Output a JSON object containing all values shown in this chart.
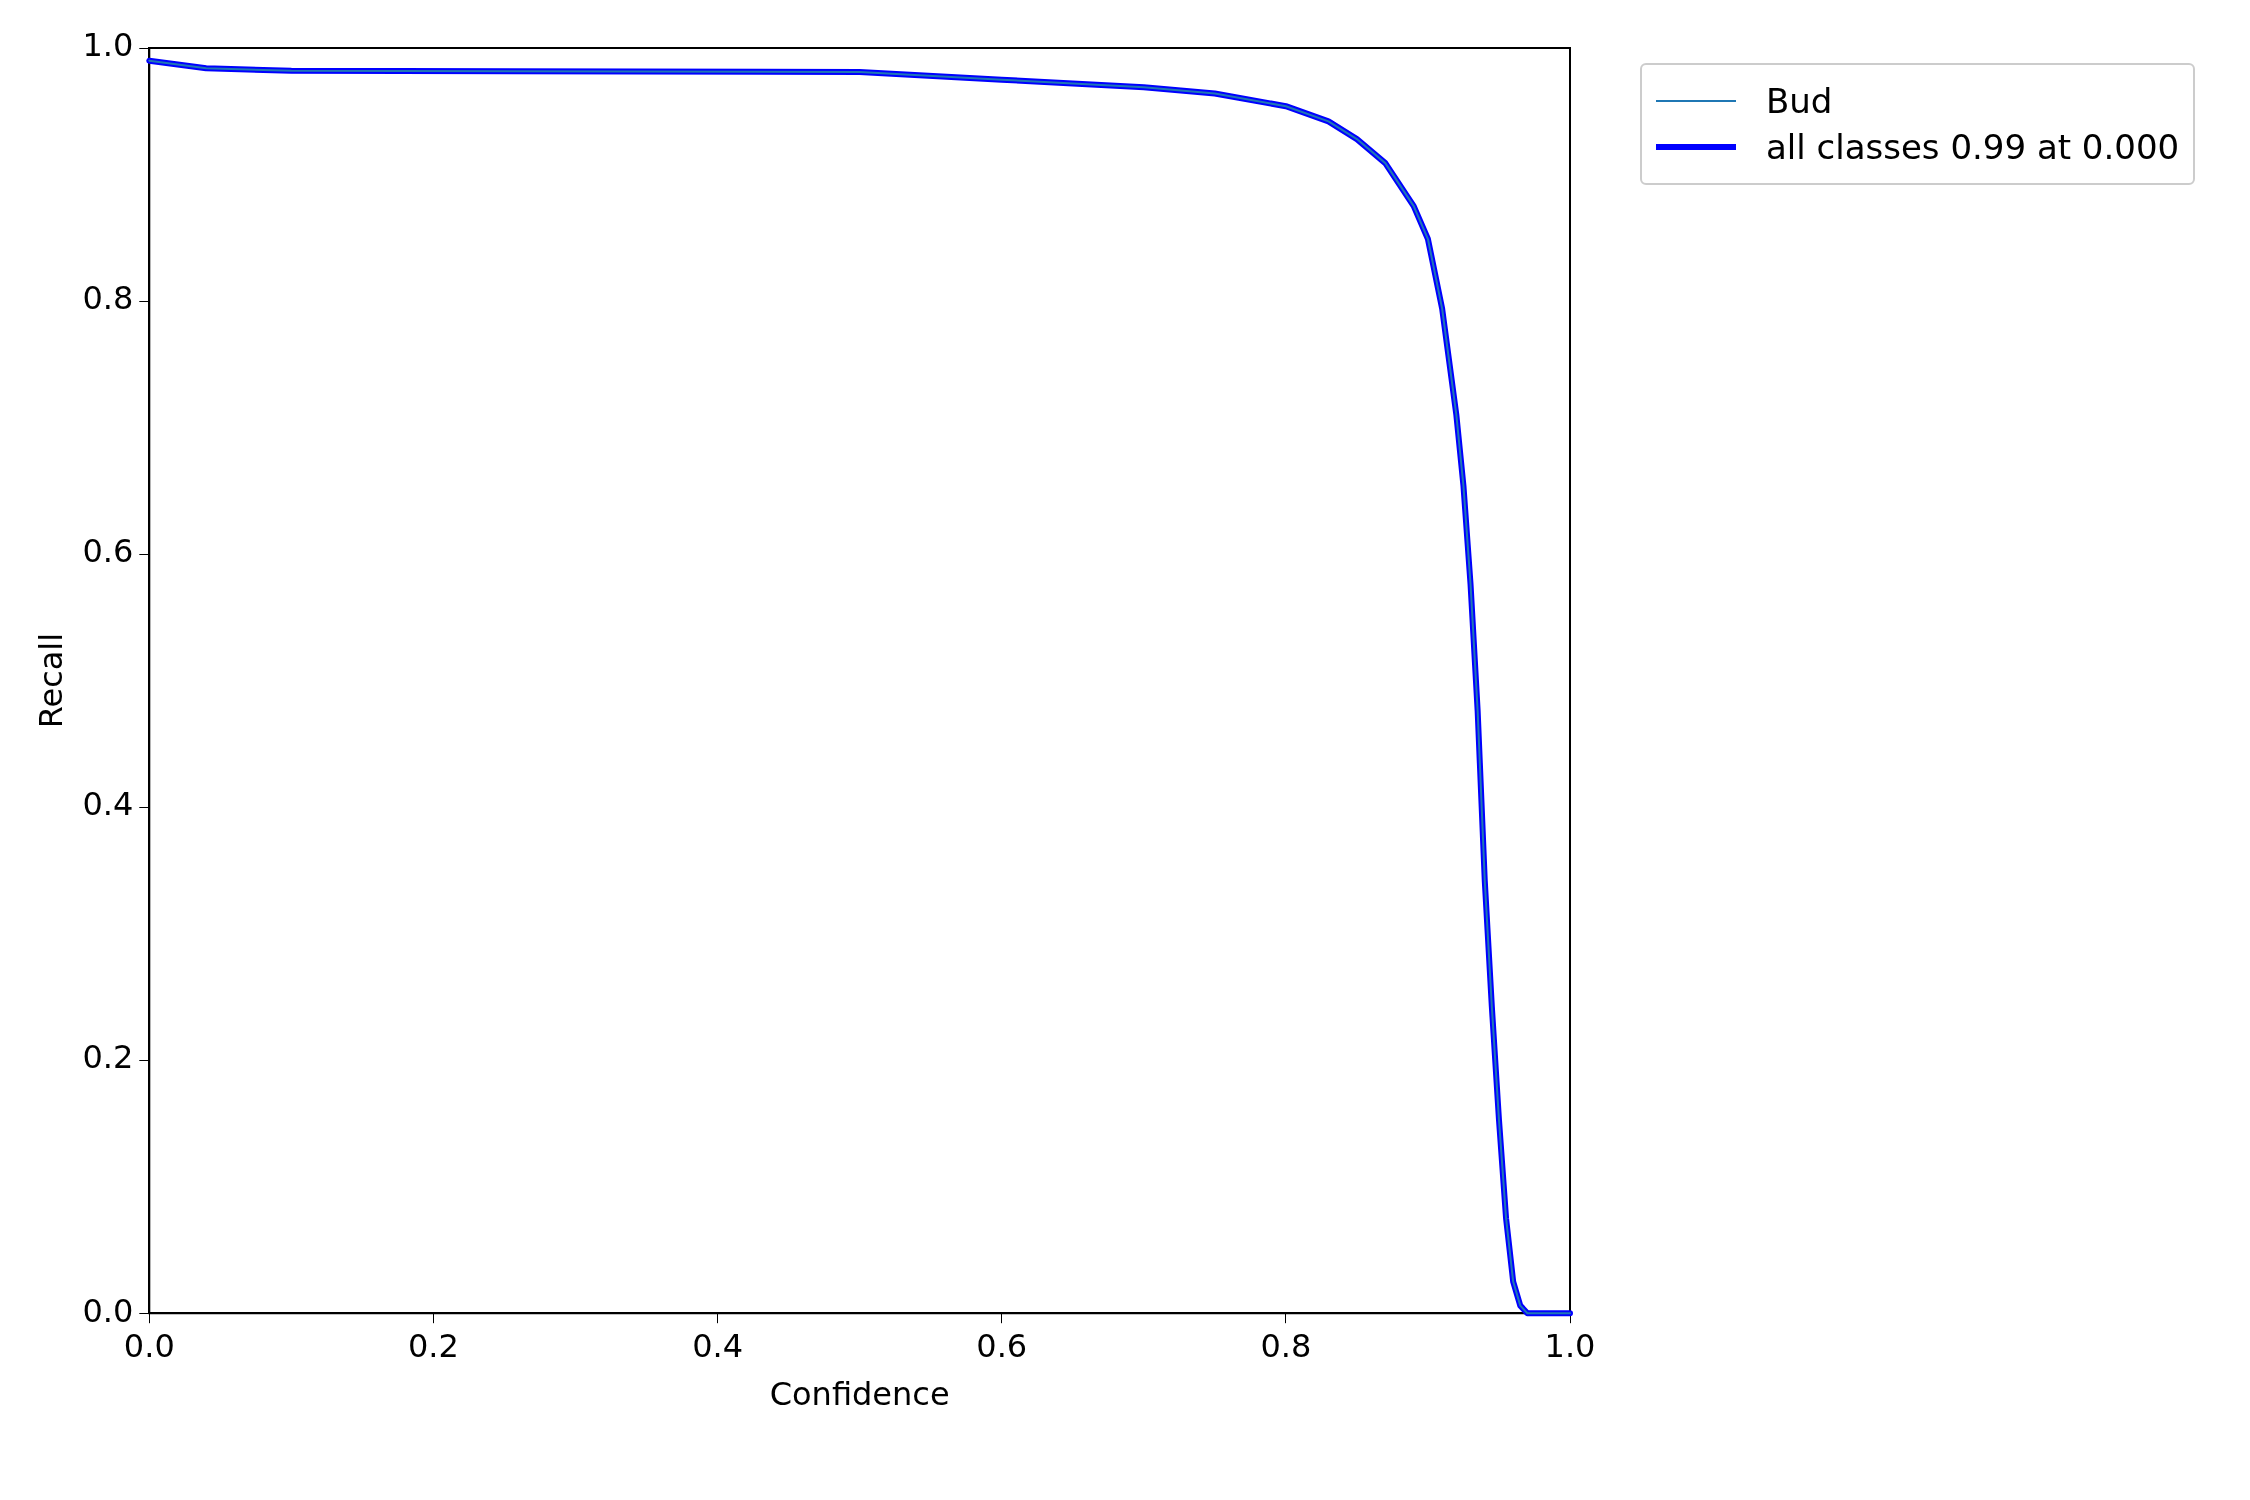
{
  "chart_data": {
    "type": "line",
    "xlabel": "Confidence",
    "ylabel": "Recall",
    "xlim": [
      0,
      1
    ],
    "ylim": [
      0,
      1
    ],
    "xticks": [
      {
        "value": 0,
        "label": "0.0"
      },
      {
        "value": 0.2,
        "label": "0.2"
      },
      {
        "value": 0.4,
        "label": "0.4"
      },
      {
        "value": 0.6,
        "label": "0.6"
      },
      {
        "value": 0.8,
        "label": "0.8"
      },
      {
        "value": 1,
        "label": "1.0"
      }
    ],
    "yticks": [
      {
        "value": 0,
        "label": "0.0"
      },
      {
        "value": 0.2,
        "label": "0.2"
      },
      {
        "value": 0.4,
        "label": "0.4"
      },
      {
        "value": 0.6,
        "label": "0.6"
      },
      {
        "value": 0.8,
        "label": "0.8"
      },
      {
        "value": 1,
        "label": "1.0"
      }
    ],
    "x": [
      0,
      0.02,
      0.04,
      0.1,
      0.5,
      0.6,
      0.65,
      0.7,
      0.75,
      0.8,
      0.83,
      0.85,
      0.87,
      0.88,
      0.89,
      0.9,
      0.91,
      0.92,
      0.925,
      0.93,
      0.935,
      0.94,
      0.945,
      0.95,
      0.955,
      0.96,
      0.965,
      0.97,
      1
    ],
    "series": [
      {
        "name": "Bud",
        "color": "#1f77b4",
        "values": [
          0.99,
          0.987,
          0.984,
          0.982,
          0.981,
          0.975,
          0.972,
          0.969,
          0.964,
          0.954,
          0.942,
          0.928,
          0.909,
          0.892,
          0.875,
          0.849,
          0.794,
          0.71,
          0.654,
          0.576,
          0.476,
          0.342,
          0.242,
          0.153,
          0.075,
          0.025,
          0.006,
          0,
          0
        ]
      },
      {
        "name": "all classes 0.99 at 0.000",
        "color": "#0000ff",
        "values": [
          0.99,
          0.987,
          0.984,
          0.982,
          0.981,
          0.975,
          0.972,
          0.969,
          0.964,
          0.954,
          0.942,
          0.928,
          0.909,
          0.892,
          0.875,
          0.849,
          0.794,
          0.71,
          0.654,
          0.576,
          0.476,
          0.342,
          0.242,
          0.153,
          0.075,
          0.025,
          0.006,
          0,
          0
        ]
      }
    ],
    "grid": false,
    "legend": "top right",
    "marker": "none",
    "line_style": "solid"
  }
}
